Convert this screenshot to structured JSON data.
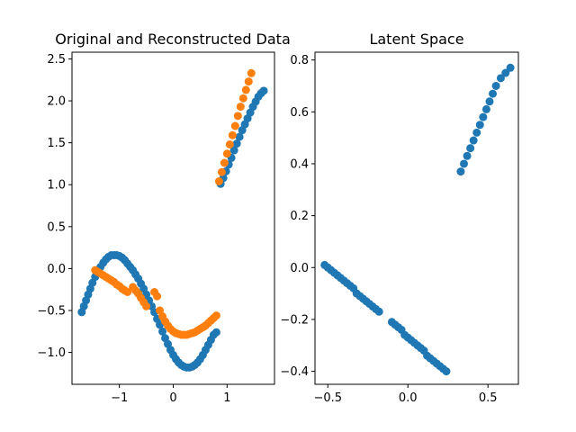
{
  "chart_data": [
    {
      "type": "scatter",
      "title": "Original and Reconstructed Data",
      "xlabel": "",
      "ylabel": "",
      "xlim": [
        -1.88,
        1.88
      ],
      "ylim": [
        -1.38,
        2.58
      ],
      "xticks": [
        -1,
        0,
        1
      ],
      "xtick_labels": [
        "−1",
        "0",
        "1"
      ],
      "yticks": [
        -1.0,
        -0.5,
        0.0,
        0.5,
        1.0,
        1.5,
        2.0,
        2.5
      ],
      "ytick_labels": [
        "−1.0",
        "−0.5",
        "0.0",
        "0.5",
        "1.0",
        "1.5",
        "2.0",
        "2.5"
      ],
      "grid": false,
      "series": [
        {
          "color": "#1f77b4",
          "points": [
            [
              -1.7,
              -0.52
            ],
            [
              -1.66,
              -0.45
            ],
            [
              -1.62,
              -0.38
            ],
            [
              -1.58,
              -0.31
            ],
            [
              -1.54,
              -0.24
            ],
            [
              -1.5,
              -0.17
            ],
            [
              -1.45,
              -0.1
            ],
            [
              -1.4,
              -0.04
            ],
            [
              -1.35,
              0.02
            ],
            [
              -1.3,
              0.07
            ],
            [
              -1.25,
              0.11
            ],
            [
              -1.2,
              0.14
            ],
            [
              -1.15,
              0.16
            ],
            [
              -1.1,
              0.16
            ],
            [
              -1.05,
              0.16
            ],
            [
              -1.0,
              0.15
            ],
            [
              -0.95,
              0.13
            ],
            [
              -0.9,
              0.1
            ],
            [
              -0.85,
              0.06
            ],
            [
              -0.8,
              0.02
            ],
            [
              -0.75,
              -0.02
            ],
            [
              -0.7,
              -0.07
            ],
            [
              -0.65,
              -0.12
            ],
            [
              -0.6,
              -0.18
            ],
            [
              -0.55,
              -0.24
            ],
            [
              -0.5,
              -0.31
            ],
            [
              -0.45,
              -0.38
            ],
            [
              -0.4,
              -0.45
            ],
            [
              -0.35,
              -0.52
            ],
            [
              -0.3,
              -0.6
            ],
            [
              -0.25,
              -0.67
            ],
            [
              -0.2,
              -0.75
            ],
            [
              -0.15,
              -0.83
            ],
            [
              -0.1,
              -0.9
            ],
            [
              -0.05,
              -0.97
            ],
            [
              0.0,
              -1.03
            ],
            [
              0.05,
              -1.08
            ],
            [
              0.1,
              -1.12
            ],
            [
              0.15,
              -1.15
            ],
            [
              0.2,
              -1.17
            ],
            [
              0.25,
              -1.18
            ],
            [
              0.3,
              -1.18
            ],
            [
              0.35,
              -1.17
            ],
            [
              0.4,
              -1.15
            ],
            [
              0.45,
              -1.12
            ],
            [
              0.5,
              -1.08
            ],
            [
              0.55,
              -1.03
            ],
            [
              0.6,
              -0.97
            ],
            [
              0.65,
              -0.91
            ],
            [
              0.7,
              -0.85
            ],
            [
              0.75,
              -0.79
            ],
            [
              0.8,
              -0.76
            ],
            [
              0.88,
              1.01
            ],
            [
              0.93,
              1.08
            ],
            [
              0.98,
              1.16
            ],
            [
              1.03,
              1.24
            ],
            [
              1.08,
              1.32
            ],
            [
              1.13,
              1.41
            ],
            [
              1.18,
              1.49
            ],
            [
              1.23,
              1.57
            ],
            [
              1.28,
              1.65
            ],
            [
              1.33,
              1.72
            ],
            [
              1.38,
              1.79
            ],
            [
              1.43,
              1.86
            ],
            [
              1.48,
              1.93
            ],
            [
              1.53,
              1.99
            ],
            [
              1.58,
              2.05
            ],
            [
              1.63,
              2.09
            ],
            [
              1.68,
              2.12
            ]
          ]
        },
        {
          "color": "#ff7f0e",
          "points": [
            [
              -1.45,
              -0.02
            ],
            [
              -1.4,
              -0.04
            ],
            [
              -1.35,
              -0.06
            ],
            [
              -1.3,
              -0.08
            ],
            [
              -1.25,
              -0.1
            ],
            [
              -1.2,
              -0.12
            ],
            [
              -1.15,
              -0.14
            ],
            [
              -1.1,
              -0.16
            ],
            [
              -1.05,
              -0.19
            ],
            [
              -1.0,
              -0.21
            ],
            [
              -0.95,
              -0.24
            ],
            [
              -0.9,
              -0.26
            ],
            [
              -0.85,
              -0.28
            ],
            [
              -0.75,
              -0.22
            ],
            [
              -0.7,
              -0.26
            ],
            [
              -0.65,
              -0.3
            ],
            [
              -0.6,
              -0.35
            ],
            [
              -0.55,
              -0.4
            ],
            [
              -0.5,
              -0.45
            ],
            [
              -0.35,
              -0.28
            ],
            [
              -0.3,
              -0.33
            ],
            [
              -0.25,
              -0.5
            ],
            [
              -0.2,
              -0.57
            ],
            [
              -0.15,
              -0.63
            ],
            [
              -0.1,
              -0.68
            ],
            [
              -0.05,
              -0.72
            ],
            [
              0.0,
              -0.75
            ],
            [
              0.05,
              -0.77
            ],
            [
              0.1,
              -0.78
            ],
            [
              0.15,
              -0.79
            ],
            [
              0.2,
              -0.79
            ],
            [
              0.25,
              -0.79
            ],
            [
              0.3,
              -0.78
            ],
            [
              0.35,
              -0.77
            ],
            [
              0.4,
              -0.76
            ],
            [
              0.45,
              -0.74
            ],
            [
              0.5,
              -0.72
            ],
            [
              0.55,
              -0.7
            ],
            [
              0.6,
              -0.68
            ],
            [
              0.65,
              -0.65
            ],
            [
              0.7,
              -0.62
            ],
            [
              0.75,
              -0.59
            ],
            [
              0.8,
              -0.56
            ],
            [
              0.85,
              1.04
            ],
            [
              0.9,
              1.15
            ],
            [
              0.95,
              1.26
            ],
            [
              1.0,
              1.37
            ],
            [
              1.05,
              1.48
            ],
            [
              1.1,
              1.59
            ],
            [
              1.15,
              1.7
            ],
            [
              1.2,
              1.82
            ],
            [
              1.25,
              1.93
            ],
            [
              1.3,
              2.03
            ],
            [
              1.35,
              2.13
            ],
            [
              1.4,
              2.23
            ],
            [
              1.45,
              2.33
            ]
          ]
        }
      ]
    },
    {
      "type": "scatter",
      "title": "Latent Space",
      "xlabel": "",
      "ylabel": "",
      "xlim": [
        -0.58,
        0.69
      ],
      "ylim": [
        -0.45,
        0.83
      ],
      "xticks": [
        -0.5,
        0.0,
        0.5
      ],
      "xtick_labels": [
        "−0.5",
        "0.0",
        "0.5"
      ],
      "yticks": [
        -0.4,
        -0.2,
        0.0,
        0.2,
        0.4,
        0.6,
        0.8
      ],
      "ytick_labels": [
        "−0.4",
        "−0.2",
        "0.0",
        "0.2",
        "0.4",
        "0.6",
        "0.8"
      ],
      "grid": false,
      "series": [
        {
          "color": "#1f77b4",
          "points": [
            [
              -0.52,
              0.01
            ],
            [
              -0.5,
              0.0
            ],
            [
              -0.48,
              -0.01
            ],
            [
              -0.46,
              -0.02
            ],
            [
              -0.44,
              -0.03
            ],
            [
              -0.42,
              -0.04
            ],
            [
              -0.4,
              -0.05
            ],
            [
              -0.38,
              -0.06
            ],
            [
              -0.36,
              -0.07
            ],
            [
              -0.34,
              -0.08
            ],
            [
              -0.32,
              -0.1
            ],
            [
              -0.3,
              -0.11
            ],
            [
              -0.28,
              -0.12
            ],
            [
              -0.26,
              -0.13
            ],
            [
              -0.24,
              -0.14
            ],
            [
              -0.22,
              -0.15
            ],
            [
              -0.2,
              -0.16
            ],
            [
              -0.18,
              -0.17
            ],
            [
              -0.1,
              -0.21
            ],
            [
              -0.08,
              -0.22
            ],
            [
              -0.06,
              -0.23
            ],
            [
              -0.04,
              -0.24
            ],
            [
              -0.02,
              -0.26
            ],
            [
              0.0,
              -0.27
            ],
            [
              0.02,
              -0.28
            ],
            [
              0.04,
              -0.29
            ],
            [
              0.06,
              -0.3
            ],
            [
              0.08,
              -0.31
            ],
            [
              0.1,
              -0.32
            ],
            [
              0.12,
              -0.34
            ],
            [
              0.14,
              -0.35
            ],
            [
              0.16,
              -0.36
            ],
            [
              0.18,
              -0.37
            ],
            [
              0.2,
              -0.38
            ],
            [
              0.22,
              -0.39
            ],
            [
              0.24,
              -0.4
            ],
            [
              0.33,
              0.37
            ],
            [
              0.35,
              0.4
            ],
            [
              0.37,
              0.43
            ],
            [
              0.39,
              0.46
            ],
            [
              0.41,
              0.49
            ],
            [
              0.43,
              0.52
            ],
            [
              0.45,
              0.55
            ],
            [
              0.47,
              0.58
            ],
            [
              0.49,
              0.61
            ],
            [
              0.51,
              0.64
            ],
            [
              0.53,
              0.67
            ],
            [
              0.55,
              0.7
            ],
            [
              0.58,
              0.73
            ],
            [
              0.61,
              0.75
            ],
            [
              0.64,
              0.77
            ]
          ]
        }
      ]
    }
  ]
}
